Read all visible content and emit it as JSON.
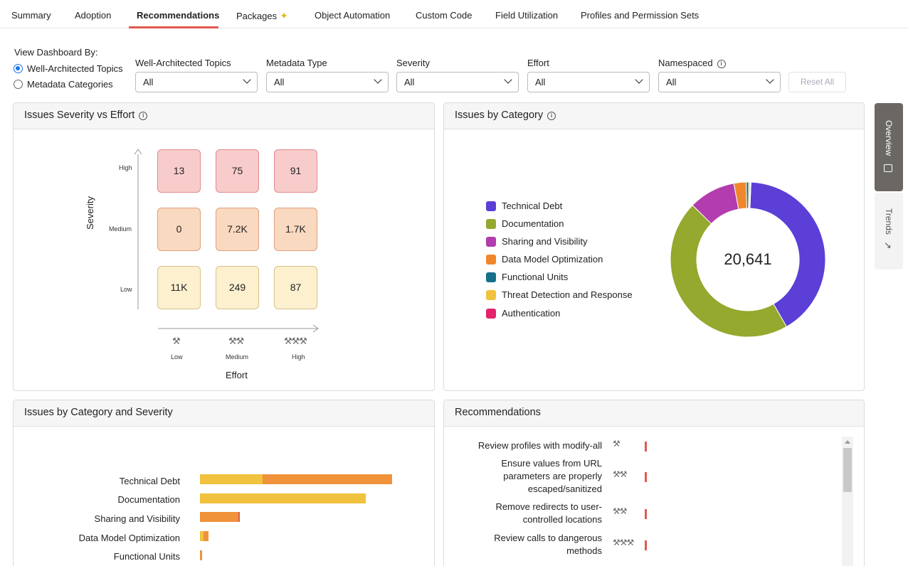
{
  "tabs": [
    {
      "label": "Summary"
    },
    {
      "label": "Adoption"
    },
    {
      "label": "Recommendations"
    },
    {
      "label": "Packages"
    },
    {
      "label": "Object Automation"
    },
    {
      "label": "Custom Code"
    },
    {
      "label": "Field Utilization"
    },
    {
      "label": "Profiles and Permission Sets"
    }
  ],
  "filters": {
    "view_by_label": "View Dashboard By:",
    "radio_1": "Well-Architected Topics",
    "radio_2": "Metadata Categories",
    "wat_label": "Well-Architected Topics",
    "wat_value": "All",
    "meta_label": "Metadata Type",
    "meta_value": "All",
    "sev_label": "Severity",
    "sev_value": "All",
    "effort_label": "Effort",
    "effort_value": "All",
    "ns_label": "Namespaced",
    "ns_value": "All",
    "reset_label": "Reset All"
  },
  "severity_card": {
    "title": "Issues Severity vs Effort",
    "y_axis": "Severity",
    "x_axis": "Effort",
    "rows": [
      "High",
      "Medium",
      "Low"
    ],
    "cols": [
      "Low",
      "Medium",
      "High"
    ],
    "cells": {
      "high": [
        "13",
        "75",
        "91"
      ],
      "medium": [
        "0",
        "7.2K",
        "1.7K"
      ],
      "low": [
        "11K",
        "249",
        "87"
      ]
    }
  },
  "category_card": {
    "title": "Issues by Category",
    "total": "20,641",
    "legend": [
      {
        "label": "Technical Debt",
        "color": "#5b3fd6"
      },
      {
        "label": "Documentation",
        "color": "#94a92d"
      },
      {
        "label": "Sharing and Visibility",
        "color": "#b33cae"
      },
      {
        "label": "Data Model Optimization",
        "color": "#f0872c"
      },
      {
        "label": "Functional Units",
        "color": "#16708a"
      },
      {
        "label": "Threat Detection and Response",
        "color": "#f1c23d"
      },
      {
        "label": "Authentication",
        "color": "#e3236b"
      }
    ]
  },
  "side_tabs": {
    "overview": "Overview",
    "trends": "Trends"
  },
  "cat_sev_card": {
    "title": "Issues by Category and Severity",
    "rows": [
      {
        "label": "Technical Debt"
      },
      {
        "label": "Documentation"
      },
      {
        "label": "Sharing and Visibility"
      },
      {
        "label": "Data Model Optimization"
      },
      {
        "label": "Functional Units"
      }
    ]
  },
  "recommendations_card": {
    "title": "Recommendations",
    "items": [
      {
        "text": "Review profiles with modify-all",
        "effort": "Low"
      },
      {
        "text": "Ensure values from URL parameters are properly escaped/sanitized",
        "effort": "Medium"
      },
      {
        "text": "Remove redirects to user-controlled locations",
        "effort": "Medium"
      },
      {
        "text": "Review calls to dangerous methods",
        "effort": "High"
      }
    ]
  },
  "chart_data": [
    {
      "type": "heatmap",
      "title": "Issues Severity vs Effort",
      "xlabel": "Effort",
      "ylabel": "Severity",
      "x": [
        "Low",
        "Medium",
        "High"
      ],
      "y": [
        "High",
        "Medium",
        "Low"
      ],
      "values": [
        [
          13,
          75,
          91
        ],
        [
          0,
          7200,
          1700
        ],
        [
          11000,
          249,
          87
        ]
      ]
    },
    {
      "type": "pie",
      "title": "Issues by Category",
      "center_label": "20,641",
      "labels": [
        "Technical Debt",
        "Documentation",
        "Sharing and Visibility",
        "Data Model Optimization",
        "Functional Units",
        "Threat Detection and Response",
        "Authentication"
      ],
      "values": [
        8000,
        8900,
        1900,
        500,
        100,
        60,
        30
      ],
      "colors": [
        "#5b3fd6",
        "#94a92d",
        "#b33cae",
        "#f0872c",
        "#16708a",
        "#f1c23d",
        "#e3236b"
      ]
    },
    {
      "type": "bar",
      "orientation": "horizontal",
      "stacked": true,
      "title": "Issues by Category and Severity",
      "categories": [
        "Technical Debt",
        "Documentation",
        "Sharing and Visibility",
        "Data Model Optimization",
        "Functional Units"
      ],
      "series": [
        {
          "name": "Low",
          "color": "#f1c23d",
          "values": [
            3800,
            10000,
            0,
            200,
            0
          ]
        },
        {
          "name": "Medium",
          "color": "#f0923a",
          "values": [
            7800,
            0,
            2300,
            300,
            120
          ]
        },
        {
          "name": "High",
          "color": "#e05a4f",
          "values": [
            0,
            0,
            80,
            0,
            0
          ]
        }
      ]
    }
  ]
}
